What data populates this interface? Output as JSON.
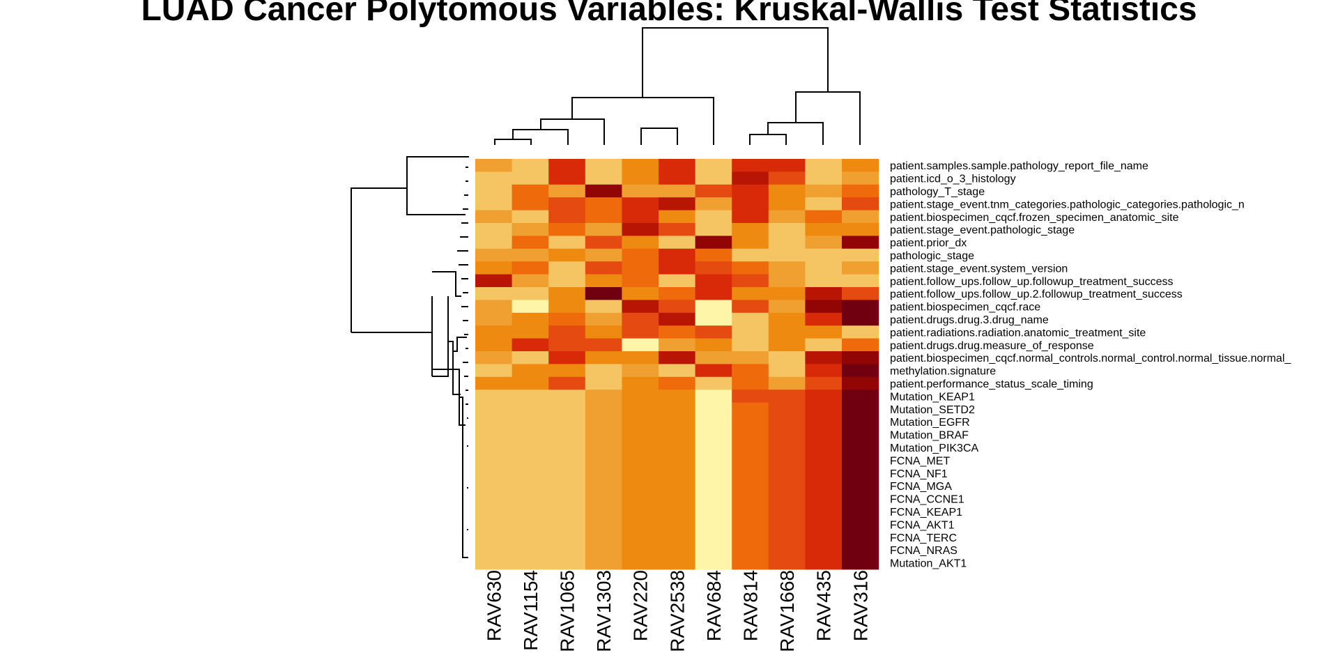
{
  "chart_data": {
    "type": "heatmap",
    "title": "LUAD Cancer Polytomous Variables: Kruskal-Wallis Test Statistics",
    "columns": [
      "RAV630",
      "RAV1154",
      "RAV1065",
      "RAV1303",
      "RAV220",
      "RAV2538",
      "RAV684",
      "RAV814",
      "RAV1668",
      "RAV435",
      "RAV316"
    ],
    "row_labels": [
      "patient.samples.sample.pathology_report_file_name",
      "patient.icd_o_3_histology",
      "pathology_T_stage",
      "patient.stage_event.tnm_categories.pathologic_categories.pathologic_n",
      "patient.biospecimen_cqcf.frozen_specimen_anatomic_site",
      "patient.stage_event.pathologic_stage",
      "patient.prior_dx",
      "pathologic_stage",
      "patient.stage_event.system_version",
      "patient.follow_ups.follow_up.followup_treatment_success",
      "patient.follow_ups.follow_up.2.followup_treatment_success",
      "patient.biospecimen_cqcf.race",
      "patient.drugs.drug.3.drug_name",
      "patient.radiations.radiation.anatomic_treatment_site",
      "patient.drugs.drug.measure_of_response",
      "patient.biospecimen_cqcf.normal_controls.normal_control.normal_tissue.normal_",
      "methylation.signature",
      "patient.performance_status_scale_timing",
      "Mutation_KEAP1",
      "Mutation_SETD2",
      "Mutation_EGFR",
      "Mutation_BRAF",
      "Mutation_PIK3CA",
      "FCNA_MET",
      "FCNA_NF1",
      "FCNA_MGA",
      "FCNA_CCNE1",
      "FCNA_KEAP1",
      "FCNA_AKT1",
      "FCNA_TERC",
      "FCNA_NRAS",
      "Mutation_AKT1"
    ],
    "color_scale": [
      "#FFF5A8",
      "#F5C563",
      "#F0A030",
      "#EE8A10",
      "#EE6A0A",
      "#E54A10",
      "#D82A08",
      "#B81505",
      "#920505",
      "#700010"
    ],
    "values": [
      [
        2,
        1,
        6,
        1,
        3,
        6,
        1,
        6,
        6,
        1,
        3
      ],
      [
        1,
        1,
        6,
        1,
        3,
        6,
        1,
        7,
        5,
        1,
        2
      ],
      [
        1,
        4,
        2,
        8,
        2,
        2,
        5,
        6,
        3,
        2,
        4
      ],
      [
        1,
        4,
        5,
        4,
        6,
        7,
        2,
        6,
        3,
        1,
        5
      ],
      [
        2,
        1,
        5,
        4,
        6,
        3,
        1,
        6,
        2,
        4,
        2
      ],
      [
        1,
        2,
        4,
        2,
        7,
        5,
        1,
        3,
        1,
        3,
        3
      ],
      [
        1,
        4,
        1,
        5,
        3,
        1,
        8,
        3,
        1,
        2,
        8
      ],
      [
        2,
        2,
        3,
        2,
        4,
        6,
        4,
        1,
        1,
        1,
        1
      ],
      [
        3,
        4,
        1,
        5,
        4,
        6,
        5,
        4,
        2,
        1,
        2
      ],
      [
        7,
        2,
        1,
        3,
        4,
        1,
        6,
        5,
        2,
        1,
        1
      ],
      [
        1,
        1,
        3,
        9,
        3,
        4,
        6,
        3,
        3,
        7,
        5
      ],
      [
        2,
        0,
        3,
        1,
        7,
        5,
        0,
        5,
        2,
        8,
        9
      ],
      [
        2,
        3,
        4,
        2,
        5,
        7,
        0,
        1,
        3,
        6,
        9
      ],
      [
        3,
        3,
        5,
        3,
        5,
        4,
        5,
        1,
        3,
        3,
        1
      ],
      [
        3,
        6,
        5,
        5,
        0,
        2,
        3,
        1,
        3,
        1,
        4
      ],
      [
        2,
        1,
        6,
        3,
        3,
        7,
        2,
        2,
        1,
        7,
        8
      ],
      [
        1,
        3,
        3,
        1,
        2,
        1,
        6,
        4,
        1,
        6,
        9
      ],
      [
        3,
        3,
        5,
        1,
        3,
        4,
        1,
        4,
        2,
        5,
        8
      ],
      [
        1,
        1,
        1,
        2,
        3,
        3,
        0,
        5,
        5,
        6,
        9
      ],
      [
        1,
        1,
        1,
        2,
        3,
        3,
        0,
        4,
        5,
        6,
        9
      ],
      [
        1,
        1,
        1,
        2,
        3,
        3,
        0,
        4,
        5,
        6,
        9
      ],
      [
        1,
        1,
        1,
        2,
        3,
        3,
        0,
        4,
        5,
        6,
        9
      ],
      [
        1,
        1,
        1,
        2,
        3,
        3,
        0,
        4,
        5,
        6,
        9
      ],
      [
        1,
        1,
        1,
        2,
        3,
        3,
        0,
        4,
        5,
        6,
        9
      ],
      [
        1,
        1,
        1,
        2,
        3,
        3,
        0,
        4,
        5,
        6,
        9
      ],
      [
        1,
        1,
        1,
        2,
        3,
        3,
        0,
        4,
        5,
        6,
        9
      ],
      [
        1,
        1,
        1,
        2,
        3,
        3,
        0,
        4,
        5,
        6,
        9
      ],
      [
        1,
        1,
        1,
        2,
        3,
        3,
        0,
        4,
        5,
        6,
        9
      ],
      [
        1,
        1,
        1,
        2,
        3,
        3,
        0,
        4,
        5,
        6,
        9
      ],
      [
        1,
        1,
        1,
        2,
        3,
        3,
        0,
        4,
        5,
        6,
        9
      ],
      [
        1,
        1,
        1,
        2,
        3,
        3,
        0,
        4,
        5,
        6,
        9
      ],
      [
        1,
        1,
        1,
        2,
        3,
        3,
        0,
        4,
        5,
        6,
        9
      ]
    ],
    "column_dendrogram": true,
    "row_dendrogram": true,
    "legend": "none"
  }
}
